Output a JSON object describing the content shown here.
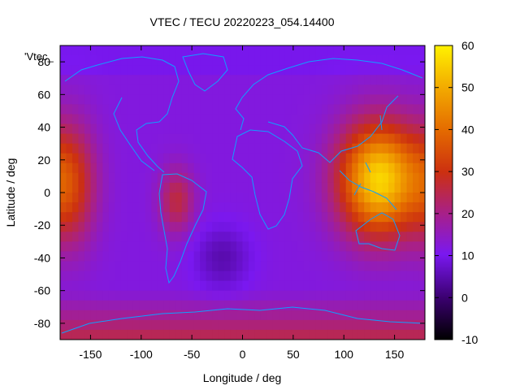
{
  "chart_data": {
    "type": "heatmap",
    "title": "VTEC / TECU 20220223_054.14400",
    "xlabel": "Longitude / deg",
    "ylabel": "Latitude / deg",
    "legend_label": "'Vtec_",
    "xlim": [
      -180,
      180
    ],
    "ylim": [
      -90,
      90
    ],
    "x_ticks": [
      -150,
      -100,
      -50,
      0,
      50,
      100,
      150
    ],
    "y_ticks": [
      -80,
      -60,
      -40,
      -20,
      0,
      20,
      40,
      60,
      80
    ],
    "colorbar": {
      "range": [
        -10,
        60
      ],
      "ticks": [
        -10,
        0,
        10,
        20,
        30,
        40,
        50,
        60
      ],
      "palette": "black-purple-red-orange-yellow"
    },
    "features": [
      {
        "lon": 135,
        "lat": 8,
        "vtec": 55,
        "note": "peak over Western Pacific / New Guinea"
      },
      {
        "lon": -170,
        "lat": 5,
        "vtec": 30
      },
      {
        "lon": -65,
        "lat": -5,
        "vtec": 27
      },
      {
        "lon": -20,
        "lat": -40,
        "vtec": 5
      },
      {
        "lon": 0,
        "lat": 0,
        "vtec": 12
      }
    ],
    "grid": false,
    "overlay": "coastlines"
  }
}
